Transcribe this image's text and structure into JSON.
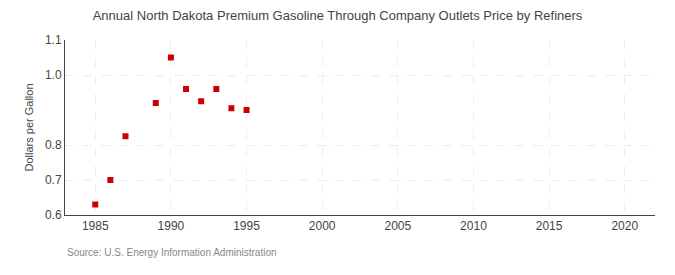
{
  "chart_data": {
    "type": "scatter",
    "title": "Annual North Dakota Premium Gasoline Through Company Outlets Price by Refiners",
    "ylabel": "Dollars per Gallon",
    "annotations": [
      "Source: U.S. Energy Information Administration"
    ],
    "x": [
      1985,
      1986,
      1987,
      1989,
      1990,
      1991,
      1992,
      1993,
      1994,
      1995
    ],
    "values": [
      0.63,
      0.7,
      0.825,
      0.92,
      1.05,
      0.96,
      0.925,
      0.96,
      0.905,
      0.9
    ],
    "color": "#cc0000",
    "marker": "square",
    "xlim": [
      1983,
      2022
    ],
    "ylim": [
      0.6,
      1.1
    ],
    "xticks": [
      1985,
      1990,
      1995,
      2000,
      2005,
      2010,
      2015,
      2020
    ],
    "yticks": [
      0.6,
      0.7,
      0.8,
      {
        "value": 1.0,
        "label": "1.0"
      },
      1.1
    ],
    "grid": true
  }
}
